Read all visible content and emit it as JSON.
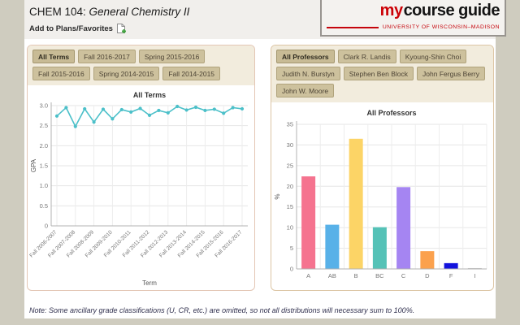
{
  "header": {
    "course_code": "CHEM 104:",
    "course_name": "General Chemistry II",
    "add_to_plans": "Add to Plans/Favorites"
  },
  "logo": {
    "my": "my",
    "course": "course",
    "guide": "guide",
    "banner": "UNIVERSITY OF WISCONSIN–MADISON",
    "red": "#c5050c"
  },
  "terms_panel": {
    "buttons": [
      {
        "label": "All Terms",
        "active": true
      },
      {
        "label": "Fall 2016-2017",
        "active": false
      },
      {
        "label": "Spring 2015-2016",
        "active": false
      },
      {
        "label": "Fall 2015-2016",
        "active": false
      },
      {
        "label": "Spring 2014-2015",
        "active": false
      },
      {
        "label": "Fall 2014-2015",
        "active": false
      }
    ]
  },
  "professors_panel": {
    "buttons": [
      {
        "label": "All Professors",
        "active": true
      },
      {
        "label": "Clark R. Landis",
        "active": false
      },
      {
        "label": "Kyoung-Shin Choi",
        "active": false
      },
      {
        "label": "Judith N. Burstyn",
        "active": false
      },
      {
        "label": "Stephen Ben Block",
        "active": false
      },
      {
        "label": "John Fergus Berry",
        "active": false
      },
      {
        "label": "John W. Moore",
        "active": false
      }
    ]
  },
  "note": "Note: Some ancillary grade classifications (U, CR, etc.) are omitted, so not all distributions will necessary sum to 100%.",
  "chart_data": [
    {
      "type": "line",
      "title": "All Terms",
      "xlabel": "Term",
      "ylabel": "GPA",
      "ylim": [
        0,
        3.0
      ],
      "yticks": [
        0,
        0.5,
        1.0,
        1.5,
        2.0,
        2.5,
        3.0
      ],
      "ytick_decimals": 1,
      "grid": true,
      "legend": "none",
      "x_tick_labels": [
        "Fall 2006-2007",
        "Fall 2007-2008",
        "Fall 2008-2009",
        "Fall 2009-2010",
        "Fall 2010-2011",
        "Fall 2011-2012",
        "Fall 2012-2013",
        "Fall 2013-2014",
        "Fall 2014-2015",
        "Fall 2015-2016",
        "Fall 2016-2017"
      ],
      "x_tick_every": 2,
      "values": [
        2.74,
        2.95,
        2.48,
        2.92,
        2.59,
        2.91,
        2.67,
        2.9,
        2.84,
        2.93,
        2.76,
        2.88,
        2.82,
        2.98,
        2.89,
        2.96,
        2.88,
        2.91,
        2.81,
        2.95,
        2.92
      ],
      "line_color": "#4cc0c9"
    },
    {
      "type": "bar",
      "title": "All Professors",
      "xlabel": "",
      "ylabel": "%",
      "ylim": [
        0,
        35
      ],
      "yticks": [
        0,
        5,
        10,
        15,
        20,
        25,
        30,
        35
      ],
      "ytick_decimals": 0,
      "grid": true,
      "legend": "none",
      "categories": [
        "A",
        "AB",
        "B",
        "BC",
        "C",
        "D",
        "F",
        "I"
      ],
      "values": [
        22.4,
        10.7,
        31.5,
        10.1,
        19.8,
        4.3,
        1.4,
        0.2
      ],
      "bar_colors": [
        "#f5738f",
        "#58b1e8",
        "#fcd466",
        "#55c2b7",
        "#a585f2",
        "#fba14d",
        "#1212dd",
        "#c9c9c9"
      ]
    }
  ]
}
